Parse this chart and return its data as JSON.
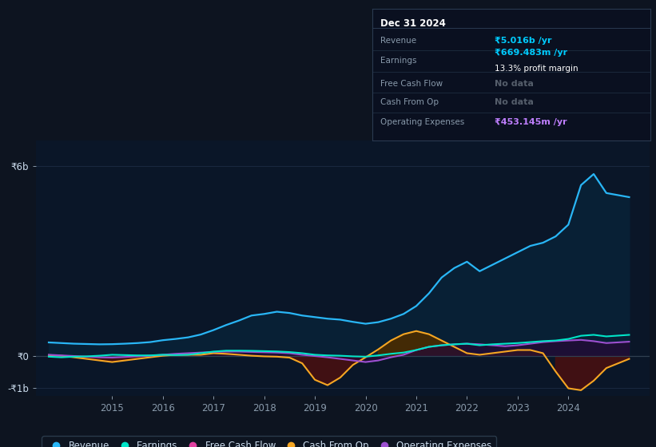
{
  "bg_color": "#0d1420",
  "plot_bg_color": "#0a1628",
  "grid_color": "#1a2840",
  "title": "Dec 31 2024",
  "info_rows": [
    {
      "label": "Revenue",
      "value": "₹5.016b /yr",
      "value_color": "#00ccff",
      "sub": null
    },
    {
      "label": "Earnings",
      "value": "₹669.483m /yr",
      "value_color": "#00ccff",
      "sub": "13.3% profit margin"
    },
    {
      "label": "Free Cash Flow",
      "value": "No data",
      "value_color": "#555e6b",
      "sub": null
    },
    {
      "label": "Cash From Op",
      "value": "No data",
      "value_color": "#555e6b",
      "sub": null
    },
    {
      "label": "Operating Expenses",
      "value": "₹453.145m /yr",
      "value_color": "#bf7fff",
      "sub": null
    }
  ],
  "ylim": [
    -1250000000.0,
    6800000000.0
  ],
  "yticks": [
    -1000000000.0,
    0,
    6000000000.0
  ],
  "ytick_labels": [
    "-₹1b",
    "₹0",
    "₹6b"
  ],
  "xlim_start": 2013.5,
  "xlim_end": 2025.6,
  "xtick_years": [
    2015,
    2016,
    2017,
    2018,
    2019,
    2020,
    2021,
    2022,
    2023,
    2024
  ],
  "legend_items": [
    {
      "label": "Revenue",
      "color": "#29b6f6"
    },
    {
      "label": "Earnings",
      "color": "#00e5c8"
    },
    {
      "label": "Free Cash Flow",
      "color": "#e040a0"
    },
    {
      "label": "Cash From Op",
      "color": "#f5a623"
    },
    {
      "label": "Operating Expenses",
      "color": "#9c50d0"
    }
  ],
  "revenue_x": [
    2013.75,
    2014.0,
    2014.25,
    2014.5,
    2014.75,
    2015.0,
    2015.25,
    2015.5,
    2015.75,
    2016.0,
    2016.25,
    2016.5,
    2016.75,
    2017.0,
    2017.25,
    2017.5,
    2017.75,
    2018.0,
    2018.25,
    2018.5,
    2018.75,
    2019.0,
    2019.25,
    2019.5,
    2019.75,
    2020.0,
    2020.25,
    2020.5,
    2020.75,
    2021.0,
    2021.25,
    2021.5,
    2021.75,
    2022.0,
    2022.25,
    2022.5,
    2022.75,
    2023.0,
    2023.25,
    2023.5,
    2023.75,
    2024.0,
    2024.25,
    2024.5,
    2024.75,
    2025.2
  ],
  "revenue_y": [
    430000000.0,
    410000000.0,
    390000000.0,
    380000000.0,
    370000000.0,
    375000000.0,
    390000000.0,
    410000000.0,
    440000000.0,
    500000000.0,
    540000000.0,
    590000000.0,
    680000000.0,
    820000000.0,
    980000000.0,
    1120000000.0,
    1280000000.0,
    1330000000.0,
    1400000000.0,
    1360000000.0,
    1280000000.0,
    1230000000.0,
    1180000000.0,
    1150000000.0,
    1080000000.0,
    1020000000.0,
    1070000000.0,
    1180000000.0,
    1330000000.0,
    1580000000.0,
    1980000000.0,
    2480000000.0,
    2780000000.0,
    2980000000.0,
    2680000000.0,
    2880000000.0,
    3080000000.0,
    3280000000.0,
    3480000000.0,
    3580000000.0,
    3780000000.0,
    4150000000.0,
    5400000000.0,
    5750000000.0,
    5150000000.0,
    5020000000.0
  ],
  "earnings_x": [
    2013.75,
    2014.0,
    2014.25,
    2014.5,
    2014.75,
    2015.0,
    2015.25,
    2015.5,
    2015.75,
    2016.0,
    2016.25,
    2016.5,
    2016.75,
    2017.0,
    2017.25,
    2017.5,
    2017.75,
    2018.0,
    2018.25,
    2018.5,
    2018.75,
    2019.0,
    2019.25,
    2019.5,
    2019.75,
    2020.0,
    2020.25,
    2020.5,
    2020.75,
    2021.0,
    2021.25,
    2021.5,
    2021.75,
    2022.0,
    2022.25,
    2022.5,
    2022.75,
    2023.0,
    2023.25,
    2023.5,
    2023.75,
    2024.0,
    2024.25,
    2024.5,
    2024.75,
    2025.2
  ],
  "earnings_y": [
    -20000000.0,
    -40000000.0,
    -20000000.0,
    -10000000.0,
    10000000.0,
    40000000.0,
    30000000.0,
    20000000.0,
    20000000.0,
    40000000.0,
    30000000.0,
    40000000.0,
    90000000.0,
    140000000.0,
    170000000.0,
    170000000.0,
    165000000.0,
    155000000.0,
    145000000.0,
    125000000.0,
    90000000.0,
    40000000.0,
    20000000.0,
    10000000.0,
    -10000000.0,
    -20000000.0,
    20000000.0,
    70000000.0,
    110000000.0,
    190000000.0,
    290000000.0,
    340000000.0,
    370000000.0,
    390000000.0,
    340000000.0,
    370000000.0,
    390000000.0,
    410000000.0,
    440000000.0,
    470000000.0,
    490000000.0,
    540000000.0,
    640000000.0,
    670000000.0,
    620000000.0,
    669000000.0
  ],
  "cfo_x": [
    2013.75,
    2014.0,
    2014.25,
    2014.5,
    2014.75,
    2015.0,
    2015.25,
    2015.5,
    2015.75,
    2016.0,
    2016.25,
    2016.5,
    2016.75,
    2017.0,
    2017.25,
    2017.5,
    2017.75,
    2018.0,
    2018.25,
    2018.5,
    2018.75,
    2019.0,
    2019.25,
    2019.5,
    2019.75,
    2020.0,
    2020.25,
    2020.5,
    2020.75,
    2021.0,
    2021.25,
    2021.5,
    2021.75,
    2022.0,
    2022.25,
    2022.5,
    2022.75,
    2023.0,
    2023.25,
    2023.5,
    2023.75,
    2024.0,
    2024.25,
    2024.5,
    2024.75,
    2025.2
  ],
  "cfo_y": [
    30000000.0,
    10000000.0,
    -40000000.0,
    -90000000.0,
    -140000000.0,
    -190000000.0,
    -140000000.0,
    -90000000.0,
    -40000000.0,
    10000000.0,
    40000000.0,
    40000000.0,
    40000000.0,
    90000000.0,
    70000000.0,
    40000000.0,
    10000000.0,
    -10000000.0,
    -20000000.0,
    -50000000.0,
    -230000000.0,
    -750000000.0,
    -920000000.0,
    -680000000.0,
    -280000000.0,
    -40000000.0,
    210000000.0,
    490000000.0,
    690000000.0,
    790000000.0,
    690000000.0,
    490000000.0,
    290000000.0,
    90000000.0,
    40000000.0,
    90000000.0,
    140000000.0,
    190000000.0,
    190000000.0,
    90000000.0,
    -490000000.0,
    -1020000000.0,
    -1080000000.0,
    -780000000.0,
    -380000000.0,
    -90000000.0
  ],
  "opex_x": [
    2013.75,
    2014.0,
    2014.25,
    2014.5,
    2014.75,
    2015.0,
    2015.25,
    2015.5,
    2015.75,
    2016.0,
    2016.25,
    2016.5,
    2016.75,
    2017.0,
    2017.25,
    2017.5,
    2017.75,
    2018.0,
    2018.25,
    2018.5,
    2018.75,
    2019.0,
    2019.25,
    2019.5,
    2019.75,
    2020.0,
    2020.25,
    2020.5,
    2020.75,
    2021.0,
    2021.25,
    2021.5,
    2021.75,
    2022.0,
    2022.25,
    2022.5,
    2022.75,
    2023.0,
    2023.25,
    2023.5,
    2023.75,
    2024.0,
    2024.25,
    2024.5,
    2024.75,
    2025.2
  ],
  "opex_y": [
    40000000.0,
    20000000.0,
    0,
    -20000000.0,
    -40000000.0,
    -50000000.0,
    -30000000.0,
    -10000000.0,
    10000000.0,
    40000000.0,
    70000000.0,
    90000000.0,
    110000000.0,
    130000000.0,
    140000000.0,
    140000000.0,
    130000000.0,
    120000000.0,
    110000000.0,
    90000000.0,
    40000000.0,
    0,
    -40000000.0,
    -90000000.0,
    -140000000.0,
    -190000000.0,
    -140000000.0,
    -40000000.0,
    40000000.0,
    190000000.0,
    290000000.0,
    340000000.0,
    370000000.0,
    390000000.0,
    370000000.0,
    340000000.0,
    310000000.0,
    340000000.0,
    390000000.0,
    440000000.0,
    470000000.0,
    490000000.0,
    510000000.0,
    470000000.0,
    410000000.0,
    453000000.0
  ]
}
